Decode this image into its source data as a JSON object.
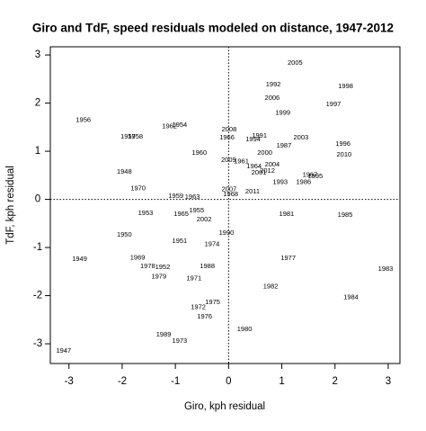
{
  "chart_data": {
    "type": "scatter",
    "title": "Giro and TdF, speed residuals modeled on distance, 1947-2012",
    "x_label": "Giro, kph residual",
    "y_label": "TdF, kph residual",
    "point_labels": [
      "2005",
      "1992",
      "1998",
      "2006",
      "1997",
      "1999",
      "1956",
      "1962",
      "1954",
      "2008",
      "1991",
      "1957",
      "1958",
      "1966",
      "1994",
      "2003",
      "1996",
      "1987",
      "1960",
      "2000",
      "2010",
      "2009",
      "1961",
      "2004",
      "1964",
      "1948",
      "2012",
      "2001",
      "1967",
      "1995",
      "1993",
      "1986",
      "1970",
      "2007",
      "2011",
      "1959",
      "1963",
      "1968",
      "1953",
      "1955",
      "1965",
      "1981",
      "1985",
      "2002",
      "1950",
      "1990",
      "1951",
      "1974",
      "1949",
      "1969",
      "1977",
      "1978",
      "1952",
      "1988",
      "1983",
      "1979",
      "1971",
      "1982",
      "1984",
      "1975",
      "1972",
      "1976",
      "1980",
      "1989",
      "1973",
      "1947"
    ],
    "x": [
      1.25,
      0.84,
      2.2,
      0.82,
      1.97,
      1.02,
      -2.73,
      -1.11,
      -0.92,
      0.01,
      0.58,
      -1.89,
      -1.75,
      -0.03,
      0.46,
      1.36,
      2.15,
      1.04,
      -0.55,
      0.68,
      2.17,
      0.0,
      0.24,
      0.82,
      0.48,
      -1.96,
      0.73,
      0.57,
      1.53,
      1.63,
      0.97,
      1.41,
      -1.7,
      0.01,
      0.45,
      -0.99,
      -0.68,
      0.04,
      -1.56,
      -0.6,
      -0.89,
      1.09,
      2.19,
      -0.46,
      -1.96,
      -0.04,
      -0.92,
      -0.31,
      -2.8,
      -1.71,
      1.12,
      -1.52,
      -1.24,
      -0.4,
      2.95,
      -1.31,
      -0.65,
      0.79,
      2.3,
      -0.3,
      -0.57,
      -0.45,
      0.3,
      -1.22,
      -0.92,
      -3.1
    ],
    "values": [
      2.83,
      2.38,
      2.35,
      2.1,
      1.97,
      1.8,
      1.65,
      1.52,
      1.54,
      1.45,
      1.32,
      1.3,
      1.3,
      1.28,
      1.24,
      1.28,
      1.15,
      1.11,
      0.96,
      0.96,
      0.93,
      0.81,
      0.79,
      0.72,
      0.68,
      0.57,
      0.59,
      0.55,
      0.51,
      0.48,
      0.36,
      0.36,
      0.23,
      0.21,
      0.16,
      0.07,
      0.05,
      0.1,
      -0.29,
      -0.23,
      -0.31,
      -0.31,
      -0.33,
      -0.42,
      -0.74,
      -0.7,
      -0.87,
      -0.93,
      -1.24,
      -1.21,
      -1.22,
      -1.39,
      -1.41,
      -1.39,
      -1.45,
      -1.61,
      -1.64,
      -1.81,
      -2.04,
      -2.14,
      -2.24,
      -2.44,
      -2.7,
      -2.81,
      -2.94,
      -3.15
    ],
    "color": "#000000",
    "xlim": [
      -3.35,
      3.22
    ],
    "ylim": [
      -3.41,
      3.17
    ],
    "xticks": [
      -3,
      -2,
      -1,
      0,
      1,
      2,
      3
    ],
    "yticks": [
      -3,
      -2,
      -1,
      0,
      1,
      2,
      3
    ],
    "reference_lines": true
  }
}
